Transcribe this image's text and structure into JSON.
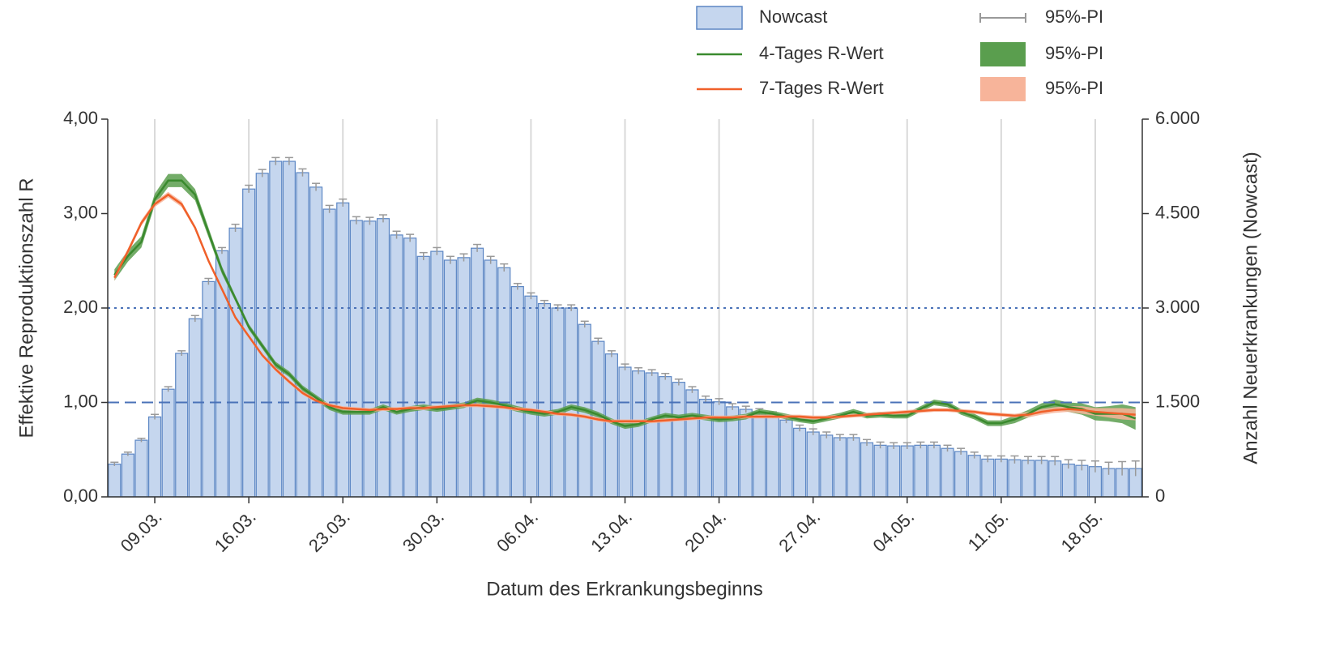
{
  "chart_data": {
    "type": "bar",
    "y_label": "Effektive Reproduktionszahl R",
    "y2_label": "Anzahl Neuerkrankungen (Nowcast)",
    "x_label": "Datum des Erkrankungsbeginns",
    "categories": [
      null,
      null,
      null,
      "09.03.",
      null,
      null,
      null,
      null,
      null,
      null,
      "16.03.",
      null,
      null,
      null,
      null,
      null,
      null,
      "23.03.",
      null,
      null,
      null,
      null,
      null,
      null,
      "30.03.",
      null,
      null,
      null,
      null,
      null,
      null,
      "06.04.",
      null,
      null,
      null,
      null,
      null,
      null,
      "13.04.",
      null,
      null,
      null,
      null,
      null,
      null,
      "20.04.",
      null,
      null,
      null,
      null,
      null,
      null,
      "27.04.",
      null,
      null,
      null,
      null,
      null,
      null,
      "04.05.",
      null,
      null,
      null,
      null,
      null,
      null,
      "11.05.",
      null,
      null,
      null,
      null,
      null,
      null,
      "18.05.",
      null,
      null,
      null
    ],
    "ylim": [
      0,
      4
    ],
    "yticks": [
      {
        "value": 0,
        "label": "0,00"
      },
      {
        "value": 1,
        "label": "1,00"
      },
      {
        "value": 2,
        "label": "2,00"
      },
      {
        "value": 3,
        "label": "3,00"
      },
      {
        "value": 4,
        "label": "4,00"
      }
    ],
    "y2lim": [
      0,
      6000
    ],
    "y2ticks": [
      0,
      {
        "value": 1500,
        "label": "1.500"
      },
      {
        "value": 3000,
        "label": "3.000"
      },
      {
        "value": 4500,
        "label": "4.500"
      },
      {
        "value": 6000,
        "label": "6.000"
      }
    ],
    "grid": true,
    "reference_lines": [
      {
        "value": 1,
        "style": "dashed"
      },
      {
        "value": 2,
        "style": "dotted"
      }
    ],
    "series": [
      {
        "name": "Nowcast",
        "type": "bar",
        "axis": "y2",
        "color": "#c5d6ee",
        "interval_name": "95%-PI",
        "interval_color": "#999999",
        "values": [
          520,
          680,
          900,
          1270,
          1710,
          2280,
          2830,
          3420,
          3910,
          4270,
          4890,
          5140,
          5330,
          5330,
          5150,
          4920,
          4570,
          4670,
          4390,
          4380,
          4420,
          4160,
          4110,
          3820,
          3900,
          3760,
          3800,
          3950,
          3760,
          3640,
          3340,
          3190,
          3070,
          3000,
          3000,
          2740,
          2470,
          2270,
          2060,
          2000,
          1970,
          1910,
          1820,
          1700,
          1550,
          1510,
          1430,
          1390,
          1350,
          1300,
          1220,
          1090,
          1030,
          980,
          940,
          940,
          860,
          820,
          810,
          810,
          820,
          820,
          770,
          720,
          660,
          600,
          600,
          590,
          580,
          580,
          570,
          520,
          500,
          480,
          450,
          450,
          450
        ],
        "errors": [
          30,
          30,
          30,
          40,
          40,
          40,
          50,
          50,
          50,
          60,
          60,
          60,
          60,
          60,
          60,
          60,
          60,
          60,
          60,
          60,
          60,
          60,
          60,
          60,
          60,
          60,
          60,
          60,
          60,
          60,
          50,
          50,
          50,
          50,
          50,
          50,
          50,
          50,
          50,
          50,
          50,
          50,
          50,
          50,
          50,
          50,
          50,
          50,
          50,
          50,
          50,
          50,
          50,
          50,
          50,
          50,
          50,
          50,
          50,
          50,
          50,
          50,
          50,
          50,
          50,
          50,
          50,
          60,
          60,
          60,
          70,
          70,
          80,
          90,
          100,
          110,
          120
        ]
      },
      {
        "name": "4-Tages R-Wert",
        "type": "line",
        "color": "#3a8a2e",
        "interval_name": "95%-PI",
        "interval_color": "#5a9e4e",
        "values": [
          2.35,
          2.55,
          2.7,
          3.15,
          3.35,
          3.35,
          3.2,
          2.8,
          2.4,
          2.1,
          1.8,
          1.6,
          1.4,
          1.3,
          1.15,
          1.05,
          0.95,
          0.9,
          0.9,
          0.9,
          0.95,
          0.9,
          0.93,
          0.95,
          0.93,
          0.95,
          0.97,
          1.02,
          1.0,
          0.97,
          0.93,
          0.9,
          0.88,
          0.9,
          0.95,
          0.92,
          0.87,
          0.8,
          0.75,
          0.77,
          0.82,
          0.86,
          0.84,
          0.86,
          0.84,
          0.82,
          0.83,
          0.85,
          0.9,
          0.88,
          0.85,
          0.82,
          0.8,
          0.83,
          0.86,
          0.9,
          0.86,
          0.87,
          0.86,
          0.86,
          0.93,
          1.0,
          0.98,
          0.9,
          0.85,
          0.78,
          0.78,
          0.82,
          0.88,
          0.95,
          0.98,
          0.95,
          0.93,
          0.88,
          0.88,
          0.88,
          0.83
        ],
        "pi": [
          0.06,
          0.06,
          0.06,
          0.06,
          0.07,
          0.07,
          0.06,
          0.05,
          0.04,
          0.03,
          0.03,
          0.03,
          0.03,
          0.03,
          0.03,
          0.03,
          0.03,
          0.03,
          0.03,
          0.03,
          0.03,
          0.03,
          0.03,
          0.03,
          0.03,
          0.03,
          0.03,
          0.03,
          0.03,
          0.03,
          0.03,
          0.03,
          0.03,
          0.03,
          0.03,
          0.03,
          0.03,
          0.03,
          0.03,
          0.03,
          0.03,
          0.03,
          0.03,
          0.03,
          0.03,
          0.03,
          0.03,
          0.03,
          0.03,
          0.03,
          0.03,
          0.03,
          0.03,
          0.03,
          0.03,
          0.03,
          0.03,
          0.03,
          0.03,
          0.03,
          0.03,
          0.03,
          0.03,
          0.03,
          0.03,
          0.03,
          0.03,
          0.04,
          0.04,
          0.04,
          0.05,
          0.05,
          0.06,
          0.07,
          0.08,
          0.1,
          0.12
        ]
      },
      {
        "name": "7-Tages R-Wert",
        "type": "line",
        "color": "#f0602a",
        "interval_name": "95%-PI",
        "interval_color": "#f7b49a",
        "values": [
          2.32,
          2.6,
          2.9,
          3.1,
          3.2,
          3.1,
          2.85,
          2.5,
          2.2,
          1.9,
          1.7,
          1.5,
          1.35,
          1.22,
          1.1,
          1.02,
          0.97,
          0.94,
          0.93,
          0.92,
          0.93,
          0.93,
          0.94,
          0.94,
          0.95,
          0.96,
          0.97,
          0.97,
          0.96,
          0.95,
          0.93,
          0.92,
          0.9,
          0.88,
          0.87,
          0.85,
          0.82,
          0.8,
          0.8,
          0.8,
          0.8,
          0.81,
          0.82,
          0.83,
          0.84,
          0.84,
          0.84,
          0.85,
          0.85,
          0.85,
          0.85,
          0.85,
          0.84,
          0.84,
          0.85,
          0.86,
          0.87,
          0.88,
          0.89,
          0.9,
          0.91,
          0.92,
          0.92,
          0.91,
          0.9,
          0.88,
          0.87,
          0.86,
          0.87,
          0.9,
          0.92,
          0.93,
          0.92,
          0.9,
          0.89,
          0.88,
          0.87
        ],
        "pi": [
          0.03,
          0.03,
          0.03,
          0.03,
          0.03,
          0.03,
          0.02,
          0.02,
          0.02,
          0.02,
          0.02,
          0.02,
          0.02,
          0.02,
          0.02,
          0.02,
          0.02,
          0.02,
          0.02,
          0.02,
          0.02,
          0.02,
          0.02,
          0.02,
          0.02,
          0.02,
          0.02,
          0.02,
          0.02,
          0.02,
          0.02,
          0.02,
          0.02,
          0.02,
          0.02,
          0.02,
          0.02,
          0.02,
          0.02,
          0.02,
          0.02,
          0.02,
          0.02,
          0.02,
          0.02,
          0.02,
          0.02,
          0.02,
          0.02,
          0.02,
          0.02,
          0.02,
          0.02,
          0.02,
          0.02,
          0.02,
          0.02,
          0.02,
          0.02,
          0.02,
          0.02,
          0.02,
          0.02,
          0.02,
          0.02,
          0.02,
          0.02,
          0.02,
          0.03,
          0.03,
          0.03,
          0.03,
          0.04,
          0.04,
          0.05,
          0.06,
          0.06
        ]
      }
    ]
  }
}
